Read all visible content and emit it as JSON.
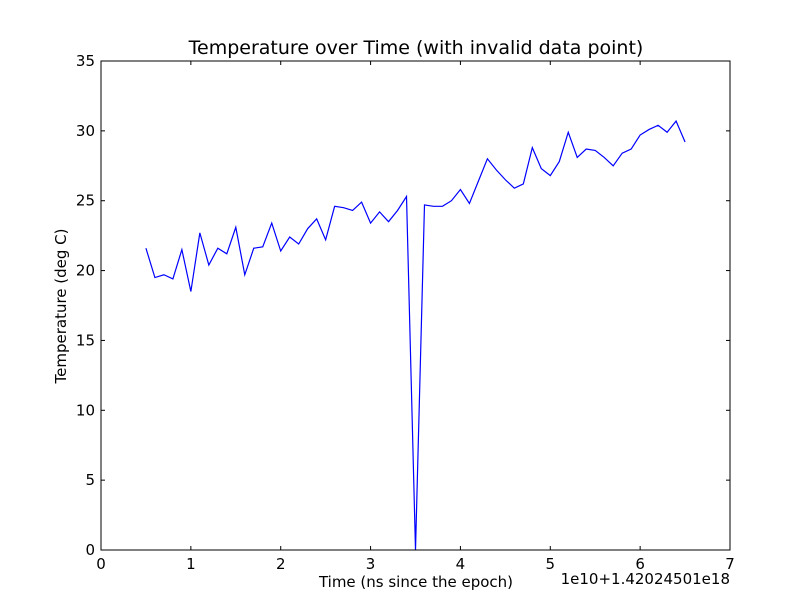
{
  "chart_data": {
    "type": "line",
    "title": "Temperature over Time (with invalid data point)",
    "xlabel": "Time (ns since the epoch)",
    "ylabel": "Temperature (deg C)",
    "x_offset_label": "1e10+1.42024501e18",
    "xlim": [
      0,
      7
    ],
    "ylim": [
      0,
      35
    ],
    "xticks": [
      0,
      1,
      2,
      3,
      4,
      5,
      6,
      7
    ],
    "yticks": [
      0,
      5,
      10,
      15,
      20,
      25,
      30,
      35
    ],
    "grid": false,
    "line_color": "#0000ff",
    "series": [
      {
        "x": [
          0.5,
          0.6,
          0.7,
          0.8,
          0.9,
          1.0,
          1.1,
          1.2,
          1.3,
          1.4,
          1.5,
          1.6,
          1.7,
          1.8,
          1.9,
          2.0,
          2.1,
          2.2,
          2.3,
          2.4,
          2.5,
          2.6,
          2.7,
          2.8,
          2.9,
          3.0,
          3.1,
          3.2,
          3.3,
          3.4,
          3.5,
          3.6,
          3.7,
          3.8,
          3.9,
          4.0,
          4.1,
          4.2,
          4.3,
          4.4,
          4.5,
          4.6,
          4.7,
          4.8,
          4.9,
          5.0,
          5.1,
          5.2,
          5.3,
          5.4,
          5.5,
          5.6,
          5.7,
          5.8,
          5.9,
          6.0,
          6.1,
          6.2,
          6.3,
          6.4,
          6.5
        ],
        "values": [
          21.6,
          19.5,
          19.7,
          19.4,
          21.5,
          18.5,
          22.7,
          20.4,
          21.6,
          21.2,
          23.1,
          19.7,
          21.6,
          21.7,
          23.4,
          21.4,
          22.4,
          21.9,
          23.0,
          23.7,
          22.2,
          24.6,
          24.5,
          24.3,
          24.9,
          23.4,
          24.2,
          23.5,
          24.3,
          25.3,
          0.0,
          24.7,
          24.6,
          24.6,
          25.0,
          25.8,
          24.8,
          26.4,
          28.0,
          27.2,
          26.5,
          25.9,
          26.2,
          28.8,
          27.3,
          26.8,
          27.8,
          29.9,
          28.1,
          28.7,
          28.6,
          28.1,
          27.5,
          28.4,
          28.7,
          29.7,
          30.1,
          30.4,
          29.9,
          30.7,
          29.2
        ]
      }
    ]
  }
}
